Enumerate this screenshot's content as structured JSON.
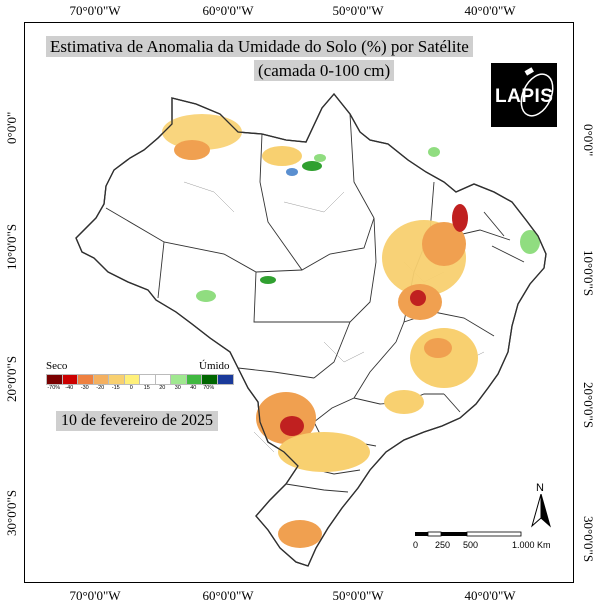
{
  "title_line1": "Estimativa de Anomalia da Umidade do Solo (%) por Satélite",
  "title_line2": "(camada 0-100 cm)",
  "date": "10 de fevereiro de 2025",
  "logo_text": "LAPIS",
  "longitude_labels": [
    "70°0'0\"W",
    "60°0'0\"W",
    "50°0'0\"W",
    "40°0'0\"W"
  ],
  "latitude_labels": [
    "0°0'0\"",
    "10°0'0\"S",
    "20°0'0\"S",
    "30°0'0\"S"
  ],
  "legend": {
    "dry_label": "Seco",
    "wet_label": "Úmido",
    "classes": [
      {
        "label": "-70%",
        "color": "#7a0000"
      },
      {
        "label": "-40",
        "color": "#cc0000"
      },
      {
        "label": "-30",
        "color": "#ee8040"
      },
      {
        "label": "-20",
        "color": "#f4b060"
      },
      {
        "label": "-15",
        "color": "#f8d070"
      },
      {
        "label": "0",
        "color": "#fff07a"
      },
      {
        "label": "15",
        "color": "#ffffff"
      },
      {
        "label": "20",
        "color": "#ffffff"
      },
      {
        "label": "30",
        "color": "#a0e890"
      },
      {
        "label": "40",
        "color": "#40b840"
      },
      {
        "label": "70%",
        "color": "#006600"
      },
      {
        "label": "",
        "color": "#1a3a9a"
      }
    ]
  },
  "scale_bar": {
    "ticks": [
      "0",
      "250",
      "500",
      "1.000 Km"
    ]
  },
  "north_label": "N",
  "colors": {
    "dry_strong": "#c02020",
    "dry_mid": "#f0a050",
    "dry_light": "#f8d070",
    "wet_light": "#90dd80",
    "wet_mid": "#30a030",
    "wet_blue": "#5a8fd0"
  }
}
